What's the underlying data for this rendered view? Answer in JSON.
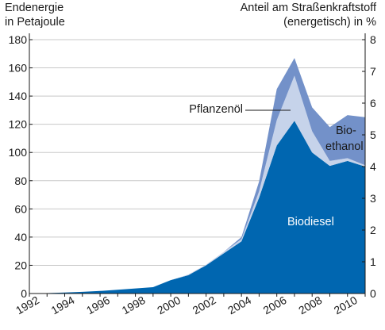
{
  "chart_data": {
    "type": "area",
    "stacked": true,
    "left_axis_title": [
      "Endenergie",
      "in Petajoule"
    ],
    "right_axis_title": [
      "Anteil am Straßenkraftstoff",
      "(energetisch) in %"
    ],
    "x": [
      1992,
      1993,
      1994,
      1995,
      1996,
      1997,
      1998,
      1999,
      2000,
      2001,
      2002,
      2003,
      2004,
      2005,
      2006,
      2007,
      2008,
      2009,
      2010,
      2011
    ],
    "x_ticks": [
      "1992",
      "1994",
      "1996",
      "1998",
      "2000",
      "2002",
      "2004",
      "2006",
      "2008",
      "2010"
    ],
    "y_left_ticks": [
      "0",
      "20",
      "40",
      "60",
      "80",
      "100",
      "120",
      "140",
      "160",
      "180"
    ],
    "y_right_ticks": [
      "0",
      "1",
      "2",
      "3",
      "4",
      "5",
      "6",
      "7",
      "8"
    ],
    "ylim_left": [
      0,
      180
    ],
    "ylim_right": [
      0,
      8
    ],
    "grid": "horizontal",
    "series": [
      {
        "name": "Biodiesel",
        "color": "#0066b0",
        "values": [
          0.1,
          0.3,
          0.7,
          1.2,
          1.8,
          2.7,
          3.6,
          4.5,
          9.5,
          13,
          20,
          28.5,
          37,
          68,
          105,
          122.5,
          100,
          90.5,
          94,
          90
        ]
      },
      {
        "name": "Pflanzenöl",
        "color": "#c6d3ea",
        "values": [
          0,
          0,
          0,
          0,
          0,
          0,
          0,
          0,
          0,
          0.5,
          0.5,
          1,
          1.5,
          4.5,
          18,
          32,
          15,
          3.5,
          2,
          1
        ]
      },
      {
        "name": "Bio-ethanol",
        "color": "#7391c9",
        "values": [
          0,
          0,
          0,
          0,
          0,
          0,
          0,
          0,
          0,
          0,
          0,
          0,
          1.5,
          7,
          22,
          12.5,
          17,
          24,
          30.5,
          34
        ]
      }
    ],
    "labels": {
      "biodiesel": "Biodiesel",
      "pflanzenoel": "Pflanzenöl",
      "bioethanol_1": "Bio-",
      "bioethanol_2": "ethanol"
    }
  }
}
